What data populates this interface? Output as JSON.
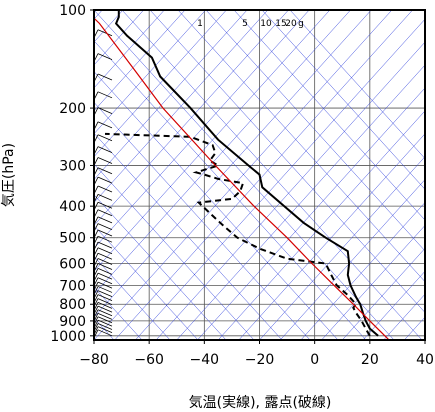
{
  "chart_data": {
    "type": "line",
    "title": "",
    "xlabel": "気温(実線), 露点(破線)",
    "ylabel": "気圧(hPa)",
    "xlim": [
      -80,
      40
    ],
    "ylim": [
      1030,
      100
    ],
    "yscale": "log",
    "x_ticks": [
      "−80",
      "−60",
      "−40",
      "−20",
      "0",
      "20",
      "40"
    ],
    "x_tick_values": [
      -80,
      -60,
      -40,
      -20,
      0,
      20,
      40
    ],
    "y_ticks": [
      "100",
      "200",
      "300",
      "400",
      "500",
      "600",
      "700",
      "800",
      "900",
      "1000"
    ],
    "y_tick_values": [
      100,
      200,
      300,
      400,
      500,
      600,
      700,
      800,
      900,
      1000
    ],
    "mixing_ratio_labels": [
      "1",
      "5",
      "10",
      "15",
      "20",
      "g"
    ],
    "mixing_ratio_values": [
      1,
      5,
      10,
      15,
      20
    ],
    "series": [
      {
        "style": "solid",
        "color": "#000000",
        "points": [
          {
            "p": 1000,
            "t": 23
          },
          {
            "p": 950,
            "t": 20
          },
          {
            "p": 900,
            "t": 18.5
          },
          {
            "p": 850,
            "t": 17.5
          },
          {
            "p": 800,
            "t": 16.5
          },
          {
            "p": 760,
            "t": 15
          },
          {
            "p": 700,
            "t": 13
          },
          {
            "p": 650,
            "t": 12
          },
          {
            "p": 600,
            "t": 12.5
          },
          {
            "p": 550,
            "t": 12
          },
          {
            "p": 500,
            "t": 4
          },
          {
            "p": 450,
            "t": -4
          },
          {
            "p": 400,
            "t": -11
          },
          {
            "p": 350,
            "t": -19
          },
          {
            "p": 320,
            "t": -20
          },
          {
            "p": 300,
            "t": -24
          },
          {
            "p": 250,
            "t": -35
          },
          {
            "p": 200,
            "t": -45
          },
          {
            "p": 160,
            "t": -56
          },
          {
            "p": 140,
            "t": -59
          },
          {
            "p": 120,
            "t": -68
          },
          {
            "p": 110,
            "t": -72
          },
          {
            "p": 105,
            "t": -71
          },
          {
            "p": 100,
            "t": -71
          }
        ]
      },
      {
        "style": "dashed",
        "color": "#000000",
        "points": [
          {
            "p": 1000,
            "t": 20
          },
          {
            "p": 950,
            "t": 18.5
          },
          {
            "p": 900,
            "t": 17
          },
          {
            "p": 850,
            "t": 15
          },
          {
            "p": 820,
            "t": 14
          },
          {
            "p": 800,
            "t": 15
          },
          {
            "p": 750,
            "t": 12
          },
          {
            "p": 700,
            "t": 8
          },
          {
            "p": 650,
            "t": 6
          },
          {
            "p": 600,
            "t": 4
          },
          {
            "p": 580,
            "t": -10
          },
          {
            "p": 540,
            "t": -20
          },
          {
            "p": 500,
            "t": -28
          },
          {
            "p": 460,
            "t": -33
          },
          {
            "p": 420,
            "t": -38
          },
          {
            "p": 390,
            "t": -42
          },
          {
            "p": 380,
            "t": -30
          },
          {
            "p": 360,
            "t": -27
          },
          {
            "p": 340,
            "t": -26
          },
          {
            "p": 330,
            "t": -35
          },
          {
            "p": 320,
            "t": -40
          },
          {
            "p": 315,
            "t": -43
          },
          {
            "p": 300,
            "t": -35
          },
          {
            "p": 290,
            "t": -38
          },
          {
            "p": 275,
            "t": -36
          },
          {
            "p": 260,
            "t": -37
          },
          {
            "p": 245,
            "t": -45
          },
          {
            "p": 240,
            "t": -76
          }
        ]
      },
      {
        "style": "solid",
        "color": "#d40000",
        "points": [
          {
            "p": 1030,
            "t": 27
          },
          {
            "p": 900,
            "t": 20
          },
          {
            "p": 800,
            "t": 14
          },
          {
            "p": 700,
            "t": 7
          },
          {
            "p": 600,
            "t": -1
          },
          {
            "p": 500,
            "t": -10
          },
          {
            "p": 400,
            "t": -22
          },
          {
            "p": 300,
            "t": -36
          },
          {
            "p": 200,
            "t": -55
          },
          {
            "p": 150,
            "t": -66
          },
          {
            "p": 110,
            "t": -78
          },
          {
            "p": 106,
            "t": -80
          }
        ]
      }
    ],
    "grid": true,
    "legend": "none"
  }
}
